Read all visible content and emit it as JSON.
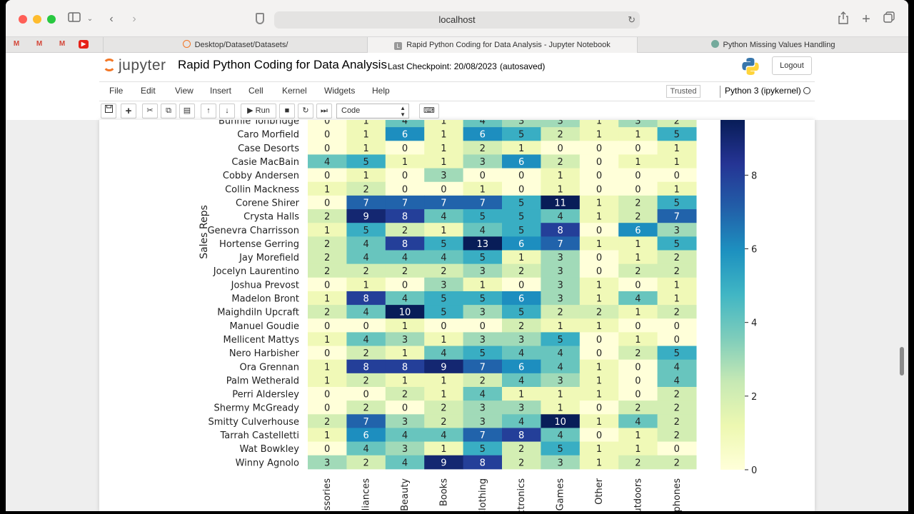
{
  "browser": {
    "url": "localhost",
    "favorites": [
      "M",
      "M",
      "M",
      "▶"
    ],
    "tabs": [
      {
        "label": "Desktop/Dataset/Datasets/",
        "active": false
      },
      {
        "label": "Rapid Python Coding for Data Analysis - Jupyter Notebook",
        "active": true
      },
      {
        "label": "Python Missing Values Handling",
        "active": false
      }
    ]
  },
  "jupyter": {
    "logo_text": "jupyter",
    "title": "Rapid Python Coding for Data Analysis",
    "checkpoint": "Last Checkpoint: 20/08/2023",
    "autosave": "(autosaved)",
    "logout_label": "Logout",
    "menu": [
      "File",
      "Edit",
      "View",
      "Insert",
      "Cell",
      "Kernel",
      "Widgets",
      "Help"
    ],
    "trusted_label": "Trusted",
    "kernel_label": "Python 3 (ipykernel)",
    "run_label": "Run",
    "cell_type": "Code"
  },
  "colors": {
    "scale": [
      "#ffffd9",
      "#edf8b1",
      "#c7e9b4",
      "#7fcdbb",
      "#41b6c4",
      "#1d91c0",
      "#225ea8",
      "#253494",
      "#081d58"
    ]
  },
  "chart_data": {
    "type": "heatmap",
    "ylabel": "Sales Reps",
    "rows": [
      "Bunnie Tonbridge",
      "Caro Morfield",
      "Case Desorts",
      "Casie MacBain",
      "Cobby Andersen",
      "Collin Mackness",
      "Corene Shirer",
      "Crysta Halls",
      "Genevra Charrisson",
      "Hortense Gerring",
      "Jay Morefield",
      "Jocelyn Laurentino",
      "Joshua Prevost",
      "Madelon Bront",
      "Maighdiln Upcraft",
      "Manuel Goudie",
      "Mellicent Mattys",
      "Nero Harbisher",
      "Ora Grennan",
      "Palm Wetherald",
      "Perri Aldersley",
      "Shermy McGready",
      "Smitty Culverhouse",
      "Tarrah Castelletti",
      "Wat Bowkley",
      "Winny Agnolo"
    ],
    "columns": [
      "essories",
      "pliances",
      "Beauty",
      "Books",
      "Clothing",
      "ctronics",
      "Games",
      "Other",
      "utdoors",
      "phones"
    ],
    "values": [
      [
        0,
        1,
        4,
        1,
        4,
        3,
        3,
        1,
        3,
        2
      ],
      [
        0,
        1,
        6,
        1,
        6,
        5,
        2,
        1,
        1,
        5
      ],
      [
        0,
        1,
        0,
        1,
        2,
        1,
        0,
        0,
        0,
        1
      ],
      [
        4,
        5,
        1,
        1,
        3,
        6,
        2,
        0,
        1,
        1
      ],
      [
        0,
        1,
        0,
        3,
        0,
        0,
        1,
        0,
        0,
        0
      ],
      [
        1,
        2,
        0,
        0,
        1,
        0,
        1,
        0,
        0,
        1
      ],
      [
        0,
        7,
        7,
        7,
        7,
        5,
        11,
        1,
        2,
        5
      ],
      [
        2,
        9,
        8,
        4,
        5,
        5,
        4,
        1,
        2,
        7
      ],
      [
        1,
        5,
        2,
        1,
        4,
        5,
        8,
        0,
        6,
        3
      ],
      [
        2,
        4,
        8,
        5,
        13,
        6,
        7,
        1,
        1,
        5
      ],
      [
        2,
        4,
        4,
        4,
        5,
        1,
        3,
        0,
        1,
        2
      ],
      [
        2,
        2,
        2,
        2,
        3,
        2,
        3,
        0,
        2,
        2
      ],
      [
        0,
        1,
        0,
        3,
        1,
        0,
        3,
        1,
        0,
        1
      ],
      [
        1,
        8,
        4,
        5,
        5,
        6,
        3,
        1,
        4,
        1
      ],
      [
        2,
        4,
        10,
        5,
        3,
        5,
        2,
        2,
        1,
        2
      ],
      [
        0,
        0,
        1,
        0,
        0,
        2,
        1,
        1,
        0,
        0
      ],
      [
        1,
        4,
        3,
        1,
        3,
        3,
        5,
        0,
        1,
        0
      ],
      [
        0,
        2,
        1,
        4,
        5,
        4,
        4,
        0,
        2,
        5
      ],
      [
        1,
        8,
        8,
        9,
        7,
        6,
        4,
        1,
        0,
        4
      ],
      [
        1,
        2,
        1,
        1,
        2,
        4,
        3,
        1,
        0,
        4
      ],
      [
        0,
        0,
        2,
        1,
        4,
        1,
        1,
        1,
        0,
        2
      ],
      [
        0,
        2,
        0,
        2,
        3,
        3,
        1,
        0,
        2,
        2
      ],
      [
        2,
        7,
        3,
        2,
        3,
        4,
        10,
        1,
        4,
        2
      ],
      [
        1,
        6,
        4,
        4,
        7,
        8,
        4,
        0,
        1,
        2
      ],
      [
        0,
        4,
        3,
        1,
        5,
        2,
        5,
        1,
        1,
        0
      ],
      [
        3,
        2,
        4,
        9,
        8,
        2,
        3,
        1,
        2,
        2
      ]
    ],
    "colorbar_ticks": [
      0,
      2,
      4,
      6,
      8
    ],
    "color_range": [
      0,
      9.5
    ],
    "grid": false
  }
}
